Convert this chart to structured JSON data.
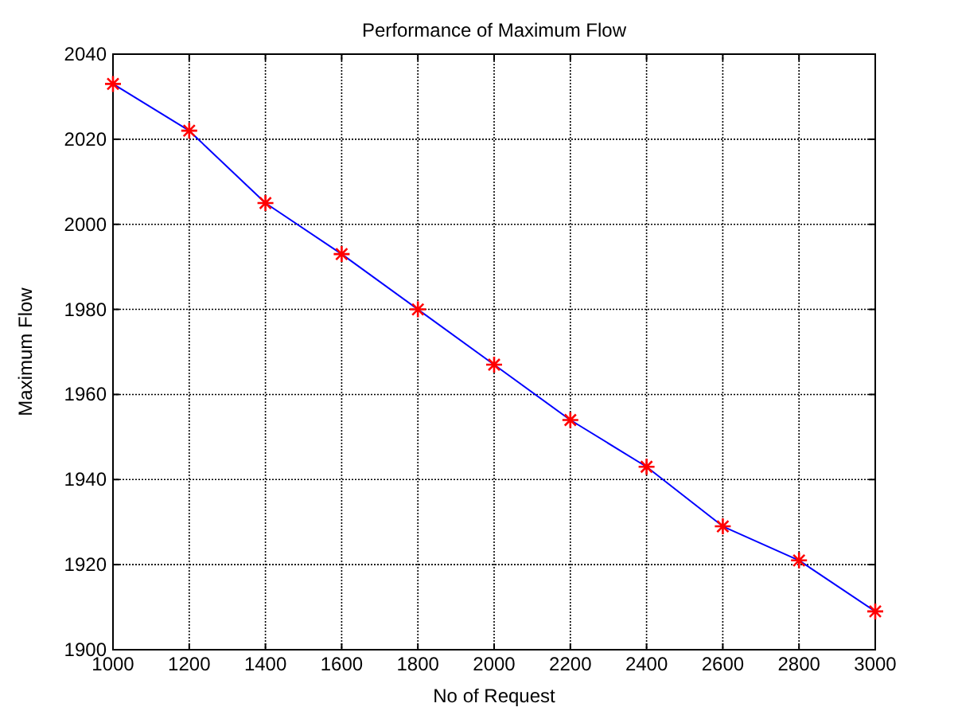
{
  "chart_data": {
    "type": "line",
    "title": "Performance of Maximum Flow",
    "xlabel": "No of Request",
    "ylabel": "Maximum Flow",
    "x": [
      1000,
      1200,
      1400,
      1600,
      1800,
      2000,
      2200,
      2400,
      2600,
      2800,
      3000
    ],
    "series": [
      {
        "color": "#0000ff",
        "values": [
          2033,
          2022,
          2005,
          1993,
          1980,
          1967,
          1954,
          1943,
          1929,
          1921,
          1909
        ]
      }
    ],
    "xlim": [
      1000,
      3000
    ],
    "xticks": [
      1000,
      1200,
      1400,
      1600,
      1800,
      2000,
      2200,
      2400,
      2600,
      2800,
      3000
    ],
    "ylim": [
      1900,
      2040
    ],
    "yticks": [
      1900,
      1920,
      1940,
      1960,
      1980,
      2000,
      2020,
      2040
    ],
    "grid": true,
    "marker": "cross",
    "line_style": "solid"
  }
}
